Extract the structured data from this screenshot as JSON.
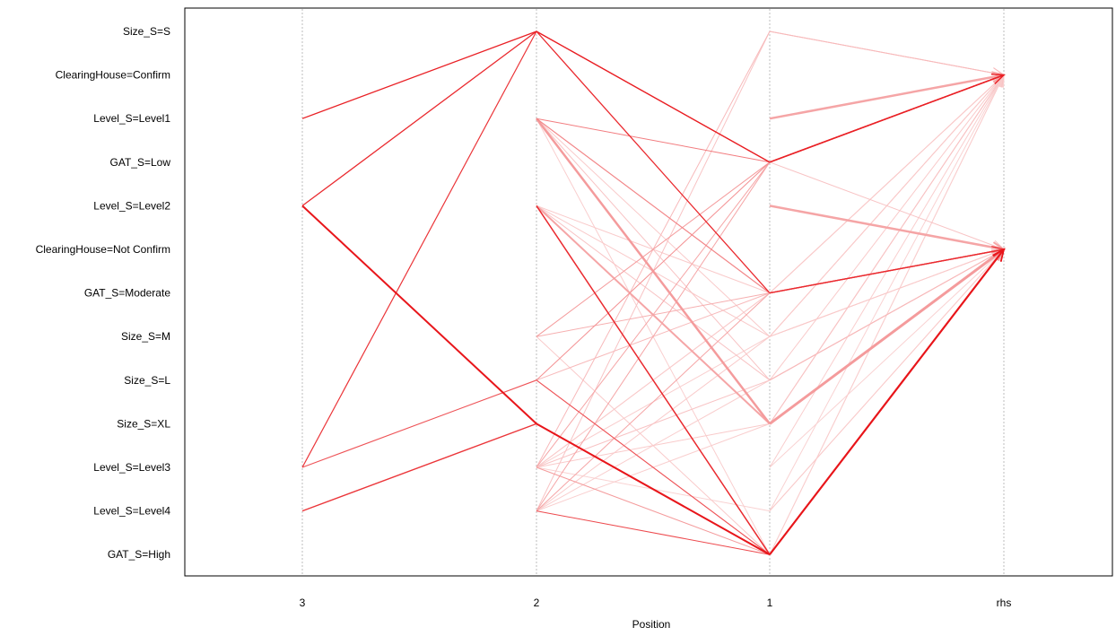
{
  "chart_data": {
    "type": "parallel-coordinates",
    "xlabel": "Position",
    "positions": [
      "3",
      "2",
      "1",
      "rhs"
    ],
    "items": [
      "Size_S=S",
      "ClearingHouse=Confirm",
      "Level_S=Level1",
      "GAT_S=Low",
      "Level_S=Level2",
      "ClearingHouse=Not Confirm",
      "GAT_S=Moderate",
      "Size_S=M",
      "Size_S=L",
      "Size_S=XL",
      "Level_S=Level3",
      "Level_S=Level4",
      "GAT_S=High"
    ],
    "rules": [
      {
        "lhs": [
          "Level_S=Level1",
          "Size_S=S",
          "GAT_S=Low"
        ],
        "rhs": "ClearingHouse=Confirm",
        "intensity": 0.95,
        "width": 1.3
      },
      {
        "lhs": [
          "Level_S=Level2",
          "Size_S=S",
          "GAT_S=Moderate"
        ],
        "rhs": "ClearingHouse=Not Confirm",
        "intensity": 0.9,
        "width": 1.3
      },
      {
        "lhs": [
          "Level_S=Level3",
          "Size_S=S",
          "GAT_S=Low"
        ],
        "rhs": "ClearingHouse=Confirm",
        "intensity": 0.85,
        "width": 1.2
      },
      {
        "lhs": [
          "Level_S=Level2",
          "Size_S=XL",
          "GAT_S=High"
        ],
        "rhs": "ClearingHouse=Not Confirm",
        "intensity": 1.0,
        "width": 2.0
      },
      {
        "lhs": [
          "Level_S=Level4",
          "Size_S=XL",
          "GAT_S=High"
        ],
        "rhs": "ClearingHouse=Not Confirm",
        "intensity": 0.85,
        "width": 1.4
      },
      {
        "lhs": [
          "Level_S=Level3",
          "Size_S=L",
          "GAT_S=High"
        ],
        "rhs": "ClearingHouse=Not Confirm",
        "intensity": 0.7,
        "width": 1.1
      },
      {
        "lhs": [
          "Size_S=S",
          "GAT_S=Low"
        ],
        "rhs": "ClearingHouse=Confirm",
        "intensity": 0.8,
        "width": 1.0
      },
      {
        "lhs": [
          "Level_S=Level1",
          "GAT_S=Low"
        ],
        "rhs": "ClearingHouse=Confirm",
        "intensity": 0.5,
        "width": 1.0
      },
      {
        "lhs": [
          "Level_S=Level2",
          "GAT_S=High"
        ],
        "rhs": "ClearingHouse=Not Confirm",
        "intensity": 0.9,
        "width": 1.5
      },
      {
        "lhs": [
          "Size_S=XL",
          "GAT_S=High"
        ],
        "rhs": "ClearingHouse=Not Confirm",
        "intensity": 0.9,
        "width": 1.6
      },
      {
        "lhs": [
          "Level_S=Level4",
          "GAT_S=High"
        ],
        "rhs": "ClearingHouse=Not Confirm",
        "intensity": 0.75,
        "width": 1.0
      },
      {
        "lhs": [
          "Level_S=Level1",
          "Size_S=XL"
        ],
        "rhs": "ClearingHouse=Not Confirm",
        "intensity": 0.35,
        "width": 2.5
      },
      {
        "lhs": [
          "Level_S=Level2",
          "Size_S=XL"
        ],
        "rhs": "ClearingHouse=Not Confirm",
        "intensity": 0.3,
        "width": 2.0
      },
      {
        "lhs": [
          "Level_S=Level1",
          "GAT_S=Moderate"
        ],
        "rhs": "ClearingHouse=Not Confirm",
        "intensity": 0.45,
        "width": 1.2
      },
      {
        "lhs": [
          "Size_S=L",
          "GAT_S=Low"
        ],
        "rhs": "ClearingHouse=Confirm",
        "intensity": 0.4,
        "width": 1.0
      },
      {
        "lhs": [
          "Size_S=M",
          "GAT_S=Low"
        ],
        "rhs": "ClearingHouse=Confirm",
        "intensity": 0.35,
        "width": 1.0
      },
      {
        "lhs": [
          "Level_S=Level3",
          "GAT_S=Low"
        ],
        "rhs": "ClearingHouse=Confirm",
        "intensity": 0.3,
        "width": 1.0
      },
      {
        "lhs": [
          "Level_S=Level4",
          "GAT_S=Low"
        ],
        "rhs": "ClearingHouse=Confirm",
        "intensity": 0.3,
        "width": 1.0
      },
      {
        "lhs": [
          "Level_S=Level3",
          "GAT_S=High"
        ],
        "rhs": "ClearingHouse=Not Confirm",
        "intensity": 0.35,
        "width": 1.0
      },
      {
        "lhs": [
          "Level_S=Level3",
          "Size_S=S"
        ],
        "rhs": "ClearingHouse=Confirm",
        "intensity": 0.2,
        "width": 1.0
      },
      {
        "lhs": [
          "Level_S=Level4",
          "Size_S=S"
        ],
        "rhs": "ClearingHouse=Confirm",
        "intensity": 0.15,
        "width": 1.0
      },
      {
        "lhs": [
          "Level_S=Level4",
          "GAT_S=Moderate"
        ],
        "rhs": "ClearingHouse=Not Confirm",
        "intensity": 0.3,
        "width": 1.0
      },
      {
        "lhs": [
          "Size_S=M",
          "GAT_S=Moderate"
        ],
        "rhs": "ClearingHouse=Not Confirm",
        "intensity": 0.25,
        "width": 1.0
      },
      {
        "lhs": [
          "Size_S=L",
          "GAT_S=Moderate"
        ],
        "rhs": "ClearingHouse=Not Confirm",
        "intensity": 0.2,
        "width": 1.0
      },
      {
        "lhs": [
          "Level_S=Level2",
          "Size_S=M"
        ],
        "rhs": "ClearingHouse=Not Confirm",
        "intensity": 0.12,
        "width": 1.0
      },
      {
        "lhs": [
          "Level_S=Level3",
          "Size_S=L"
        ],
        "rhs": "ClearingHouse=Not Confirm",
        "intensity": 0.15,
        "width": 1.0
      },
      {
        "lhs": [
          "Level_S=Level2",
          "Size_S=L"
        ],
        "rhs": "ClearingHouse=Not Confirm",
        "intensity": 0.15,
        "width": 1.0
      },
      {
        "lhs": [
          "Level_S=Level1",
          "Size_S=L"
        ],
        "rhs": "ClearingHouse=Not Confirm",
        "intensity": 0.15,
        "width": 1.0
      },
      {
        "lhs": [
          "Level_S=Level1",
          "Size_S=M"
        ],
        "rhs": "ClearingHouse=Confirm",
        "intensity": 0.12,
        "width": 1.0
      },
      {
        "lhs": [
          "Level_S=Level3",
          "Level_S=Level4"
        ],
        "rhs": "ClearingHouse=Not Confirm",
        "intensity": 0.08,
        "width": 1.0
      },
      {
        "lhs": [
          "Level_S=Level3",
          "Size_S=XL"
        ],
        "rhs": "ClearingHouse=Confirm",
        "intensity": 0.12,
        "width": 1.0
      },
      {
        "lhs": [
          "Level_S=Level3",
          "GAT_S=Moderate"
        ],
        "rhs": "ClearingHouse=Confirm",
        "intensity": 0.12,
        "width": 1.0
      },
      {
        "lhs": [
          "Level_S=Level4",
          "Size_S=L"
        ],
        "rhs": "ClearingHouse=Not Confirm",
        "intensity": 0.1,
        "width": 1.0
      },
      {
        "lhs": [
          "Level_S=Level1",
          "GAT_S=High"
        ],
        "rhs": "ClearingHouse=Confirm",
        "intensity": 0.1,
        "width": 1.0
      },
      {
        "lhs": [
          "Level_S=Level2",
          "GAT_S=Moderate"
        ],
        "rhs": "ClearingHouse=Confirm",
        "intensity": 0.12,
        "width": 1.0
      },
      {
        "lhs": [
          "Size_S=M",
          "GAT_S=High"
        ],
        "rhs": "ClearingHouse=Not Confirm",
        "intensity": 0.12,
        "width": 1.0
      },
      {
        "lhs": [
          "Size_S=L",
          "GAT_S=High"
        ],
        "rhs": "ClearingHouse=Not Confirm",
        "intensity": 0.15,
        "width": 1.0
      },
      {
        "lhs": [
          "Level_S=Level4",
          "Size_S=M"
        ],
        "rhs": "ClearingHouse=Not Confirm",
        "intensity": 0.12,
        "width": 1.0
      },
      {
        "lhs": [
          "Level_S=Level3",
          "Size_S=M"
        ],
        "rhs": "ClearingHouse=Confirm",
        "intensity": 0.1,
        "width": 1.0
      },
      {
        "lhs": [
          "Level_S=Level4",
          "Size_S=XL"
        ],
        "rhs": "ClearingHouse=Confirm",
        "intensity": 0.1,
        "width": 1.0
      },
      {
        "lhs": [
          "Level_S=Level3",
          "GAT_S=Moderate"
        ],
        "rhs": "ClearingHouse=Not Confirm",
        "intensity": 0.1,
        "width": 1.0
      },
      {
        "lhs": [
          "GAT_S=Low"
        ],
        "rhs": "ClearingHouse=Confirm",
        "intensity": 0.95,
        "width": 1.6
      },
      {
        "lhs": [
          "GAT_S=Moderate"
        ],
        "rhs": "ClearingHouse=Not Confirm",
        "intensity": 0.85,
        "width": 1.4
      },
      {
        "lhs": [
          "GAT_S=High"
        ],
        "rhs": "ClearingHouse=Not Confirm",
        "intensity": 1.0,
        "width": 2.0
      },
      {
        "lhs": [
          "Level_S=Level1"
        ],
        "rhs": "ClearingHouse=Confirm",
        "intensity": 0.3,
        "width": 2.5
      },
      {
        "lhs": [
          "Level_S=Level2"
        ],
        "rhs": "ClearingHouse=Not Confirm",
        "intensity": 0.3,
        "width": 2.5
      },
      {
        "lhs": [
          "Size_S=XL"
        ],
        "rhs": "ClearingHouse=Not Confirm",
        "intensity": 0.3,
        "width": 3.0
      },
      {
        "lhs": [
          "Size_S=XL"
        ],
        "rhs": "ClearingHouse=Confirm",
        "intensity": 0.15,
        "width": 1.0
      },
      {
        "lhs": [
          "Size_S=L"
        ],
        "rhs": "ClearingHouse=Not Confirm",
        "intensity": 0.2,
        "width": 1.0
      },
      {
        "lhs": [
          "Size_S=L"
        ],
        "rhs": "ClearingHouse=Confirm",
        "intensity": 0.12,
        "width": 1.0
      },
      {
        "lhs": [
          "Size_S=M"
        ],
        "rhs": "ClearingHouse=Confirm",
        "intensity": 0.12,
        "width": 1.0
      },
      {
        "lhs": [
          "Size_S=M"
        ],
        "rhs": "ClearingHouse=Not Confirm",
        "intensity": 0.1,
        "width": 1.0
      },
      {
        "lhs": [
          "Level_S=Level3"
        ],
        "rhs": "ClearingHouse=Confirm",
        "intensity": 0.1,
        "width": 1.0
      },
      {
        "lhs": [
          "Level_S=Level3"
        ],
        "rhs": "ClearingHouse=Not Confirm",
        "intensity": 0.08,
        "width": 1.0
      },
      {
        "lhs": [
          "Level_S=Level4"
        ],
        "rhs": "ClearingHouse=Not Confirm",
        "intensity": 0.12,
        "width": 1.0
      },
      {
        "lhs": [
          "Level_S=Level4"
        ],
        "rhs": "ClearingHouse=Confirm",
        "intensity": 0.08,
        "width": 1.0
      },
      {
        "lhs": [
          "GAT_S=High"
        ],
        "rhs": "ClearingHouse=Confirm",
        "intensity": 0.1,
        "width": 1.0
      },
      {
        "lhs": [
          "GAT_S=Moderate"
        ],
        "rhs": "ClearingHouse=Confirm",
        "intensity": 0.12,
        "width": 1.0
      },
      {
        "lhs": [
          "GAT_S=Low"
        ],
        "rhs": "ClearingHouse=Not Confirm",
        "intensity": 0.15,
        "width": 1.0
      },
      {
        "lhs": [
          "Size_S=S"
        ],
        "rhs": "ClearingHouse=Confirm",
        "intensity": 0.15,
        "width": 1.0
      }
    ],
    "colors": {
      "line_strong": "#e8161b",
      "line_weak": "#fbe2e2",
      "arrow": "#f2c2c4",
      "axis": "#000000",
      "gridline": "#bdbdbd",
      "text": "#000000"
    },
    "grid": true
  }
}
